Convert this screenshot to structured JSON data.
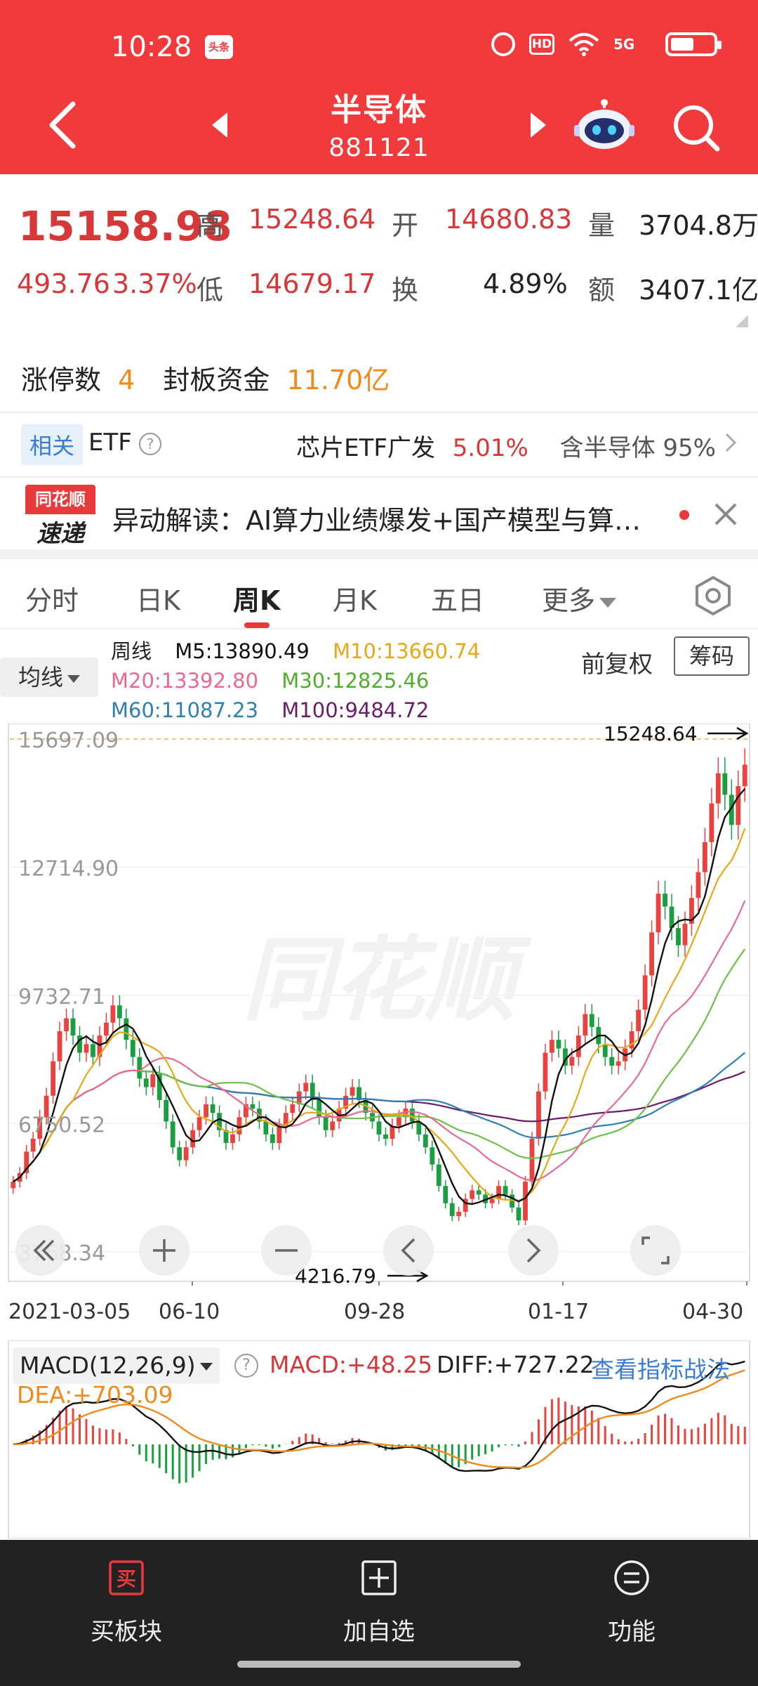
{
  "status": {
    "time": "10:28",
    "app_badge": "头条",
    "hd": "HD",
    "net": "5G"
  },
  "header": {
    "title": "半导体",
    "code": "881121"
  },
  "quote": {
    "price": "15158.98",
    "change": "493.76",
    "change_pct": "3.37%",
    "high_label": "高",
    "high": "15248.64",
    "low_label": "低",
    "low": "14679.17",
    "open_label": "开",
    "open": "14680.83",
    "turnover_label": "换",
    "turnover": "4.89%",
    "volume_label": "量",
    "volume": "3704.8万",
    "amount_label": "额",
    "amount": "3407.1亿"
  },
  "limit": {
    "label": "涨停数",
    "count": "4",
    "seal_label": "封板资金",
    "seal_amount": "11.70亿"
  },
  "etf": {
    "tag": "相关",
    "label": "ETF",
    "name": "芯片ETF广发",
    "pct": "5.01%",
    "contain": "含半导体 95%"
  },
  "news": {
    "logo_top": "同花顺",
    "logo_bottom": "速递",
    "text": "异动解读：AI算力业绩爆发+国产模型与算…"
  },
  "tabs": [
    {
      "label": "分时",
      "active": false
    },
    {
      "label": "日K",
      "active": false
    },
    {
      "label": "周K",
      "active": true
    },
    {
      "label": "月K",
      "active": false
    },
    {
      "label": "五日",
      "active": false
    },
    {
      "label": "更多",
      "active": false
    }
  ],
  "ma": {
    "button": "均线",
    "period": "周线",
    "m5": "M5:13890.49",
    "m10": "M10:13660.74",
    "m20": "M20:13392.80",
    "m30": "M30:12825.46",
    "m60": "M60:11087.23",
    "m100": "M100:9484.72",
    "adj": "前复权",
    "chip": "筹码"
  },
  "chart_data": {
    "type": "candlestick",
    "period": "weekly",
    "y_ticks": [
      "15697.09",
      "12714.90",
      "9732.71",
      "6750.52",
      "3768.34"
    ],
    "ylim": [
      3768.34,
      15697.09
    ],
    "x_ticks": [
      "2021-03-05",
      "06-10",
      "09-28",
      "01-17",
      "04-30"
    ],
    "max_label": "15248.64",
    "min_label": "4216.79",
    "watermark": "同花顺",
    "colors": {
      "up": "#e8433f",
      "down": "#1a9e3f",
      "m5": "#111111",
      "m10": "#e6a817",
      "m20": "#e96a8d",
      "m30": "#6cc04a",
      "m60": "#2f7fb3",
      "m100": "#6a1b6b"
    },
    "closes": [
      5400,
      5600,
      6100,
      6400,
      6900,
      7400,
      8200,
      8900,
      9200,
      8800,
      8400,
      8600,
      8300,
      8800,
      9100,
      9500,
      9200,
      8700,
      8300,
      7800,
      7600,
      7900,
      7300,
      6800,
      6200,
      5900,
      6200,
      6600,
      6900,
      7200,
      7000,
      6600,
      6300,
      6500,
      6900,
      7200,
      7100,
      6800,
      6500,
      6300,
      6700,
      7000,
      7200,
      7500,
      7700,
      7300,
      6900,
      6600,
      6800,
      7100,
      7400,
      7600,
      7300,
      7000,
      6800,
      6500,
      6400,
      6700,
      6900,
      7100,
      6800,
      6500,
      6200,
      5800,
      5300,
      4900,
      4600,
      4700,
      5000,
      5200,
      5100,
      4900,
      5000,
      5300,
      5100,
      4800,
      4500,
      5400,
      6400,
      7500,
      8400,
      8700,
      8500,
      8100,
      8300,
      8800,
      9300,
      9000,
      8600,
      8300,
      8100,
      8200,
      8500,
      8900,
      9400,
      10200,
      11200,
      12100,
      11800,
      11300,
      10900,
      11400,
      12000,
      12600,
      13300,
      14200,
      14900,
      14400,
      13700,
      14600,
      15100
    ]
  },
  "macd_panel": {
    "label": "MACD(12,26,9)",
    "macd": "MACD:+48.25",
    "diff": "DIFF:+727.22",
    "link": "查看指标战法",
    "dea": "DEA:+703.09"
  },
  "bottom": [
    {
      "label": "买板块",
      "icon": "buy-icon"
    },
    {
      "label": "加自选",
      "icon": "add-icon"
    },
    {
      "label": "功能",
      "icon": "menu-icon"
    }
  ]
}
